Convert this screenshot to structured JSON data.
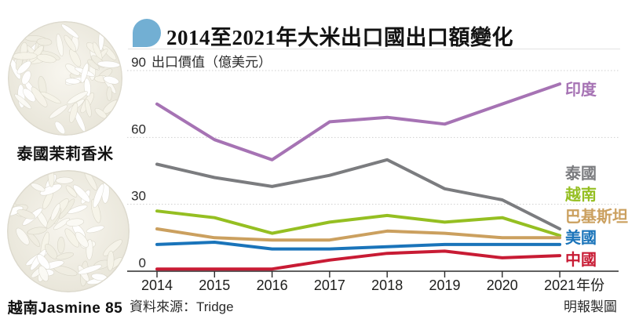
{
  "header": {
    "title": "2014至2021年大米出口國出口額變化",
    "icon": "speech-bubble-icon",
    "icon_color": "#72afd3"
  },
  "sidebar": {
    "items": [
      {
        "key": "thai-jasmine-rice",
        "caption": "泰國茉莉香米"
      },
      {
        "key": "vietnam-jasmine-85-rice",
        "caption": "越南Jasmine 85"
      }
    ]
  },
  "chart_data": {
    "type": "line",
    "title": "2014至2021年大米出口國出口額變化",
    "x": [
      2014,
      2015,
      2016,
      2017,
      2018,
      2019,
      2020,
      2021
    ],
    "xlabel": "年份",
    "ylabel": "出口價值（億美元）",
    "yticks": [
      0,
      30,
      60,
      90
    ],
    "ylim": [
      0,
      90
    ],
    "grid": true,
    "legend_position": "right-end-labels",
    "series": [
      {
        "key": "india",
        "name": "印度",
        "color": "#a673b4",
        "values": [
          75,
          59,
          50,
          67,
          69,
          66,
          75,
          84
        ]
      },
      {
        "key": "thailand",
        "name": "泰國",
        "color": "#7b7c7f",
        "values": [
          48,
          42,
          38,
          43,
          50,
          37,
          32,
          19
        ]
      },
      {
        "key": "vietnam",
        "name": "越南",
        "color": "#95bf22",
        "values": [
          27,
          24,
          17,
          22,
          25,
          22,
          24,
          16
        ]
      },
      {
        "key": "pakistan",
        "name": "巴基斯坦",
        "color": "#cba05f",
        "values": [
          19,
          15,
          14,
          14,
          18,
          17,
          15,
          15
        ]
      },
      {
        "key": "usa",
        "name": "美國",
        "color": "#1a74ba",
        "values": [
          12,
          13,
          10,
          10,
          11,
          12,
          12,
          12
        ]
      },
      {
        "key": "china",
        "name": "中國",
        "color": "#c81b34",
        "values": [
          1,
          1,
          1,
          5,
          8,
          9,
          6,
          7
        ]
      }
    ]
  },
  "footer": {
    "source": "資料來源：Tridge",
    "credit": "明報製圖"
  }
}
